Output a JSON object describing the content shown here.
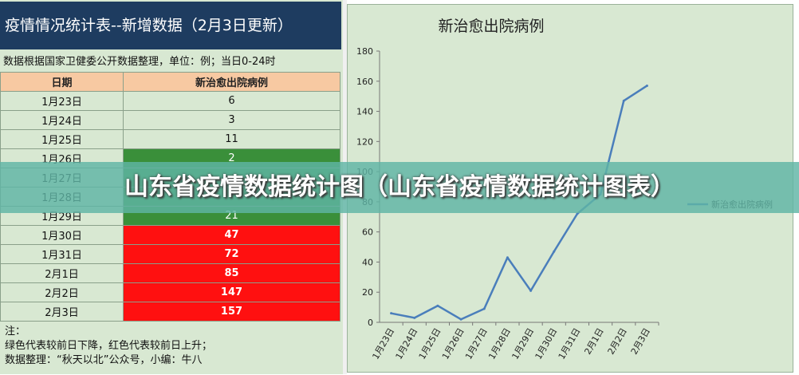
{
  "sheet": {
    "title": "疫情情况统计表--新增数据（2月3日更新）",
    "subtitle": "数据根据国家卫健委公开数据整理，单位：例；当日0-24时",
    "headers": [
      "日期",
      "新治愈出院病例"
    ],
    "rows": [
      {
        "date": "1月23日",
        "value": "6",
        "trend": "neutral"
      },
      {
        "date": "1月24日",
        "value": "3",
        "trend": "neutral"
      },
      {
        "date": "1月25日",
        "value": "11",
        "trend": "neutral"
      },
      {
        "date": "1月26日",
        "value": "2",
        "trend": "down"
      },
      {
        "date": "1月27日",
        "value": "",
        "trend": "down"
      },
      {
        "date": "1月28日",
        "value": "",
        "trend": "down"
      },
      {
        "date": "1月29日",
        "value": "21",
        "trend": "down"
      },
      {
        "date": "1月30日",
        "value": "47",
        "trend": "up"
      },
      {
        "date": "1月31日",
        "value": "72",
        "trend": "up"
      },
      {
        "date": "2月1日",
        "value": "85",
        "trend": "up"
      },
      {
        "date": "2月2日",
        "value": "147",
        "trend": "up"
      },
      {
        "date": "2月3日",
        "value": "157",
        "trend": "up"
      }
    ],
    "notes": [
      "注：",
      "绿色代表较前日下降，红色代表较前日上升；",
      "数据整理：“秋天以北”公众号，小编：牛八"
    ]
  },
  "chart_data": {
    "type": "line",
    "title": "新治愈出院病例",
    "categories": [
      "1月23日",
      "1月24日",
      "1月25日",
      "1月26日",
      "1月27日",
      "1月28日",
      "1月29日",
      "1月30日",
      "1月31日",
      "2月1日",
      "2月2日",
      "2月3日"
    ],
    "series": [
      {
        "name": "新治愈出院病例",
        "values": [
          6,
          3,
          11,
          2,
          9,
          43,
          21,
          47,
          72,
          85,
          147,
          157
        ],
        "color": "#4a7ebb"
      }
    ],
    "ylim": [
      0,
      180
    ],
    "yticks": [
      0,
      20,
      40,
      60,
      80,
      100,
      120,
      140,
      160,
      180
    ],
    "legend": "right",
    "grid": false
  },
  "banner": {
    "text": "山东省疫情数据统计图（山东省疫情数据统计图表）"
  },
  "colors": {
    "sheet_bg": "#d8e8d2",
    "title_bg": "#1e3c60",
    "header_bg": "#f7c9a2",
    "down": "#3a8f3a",
    "up": "#ff1010",
    "line": "#4a7ebb"
  }
}
